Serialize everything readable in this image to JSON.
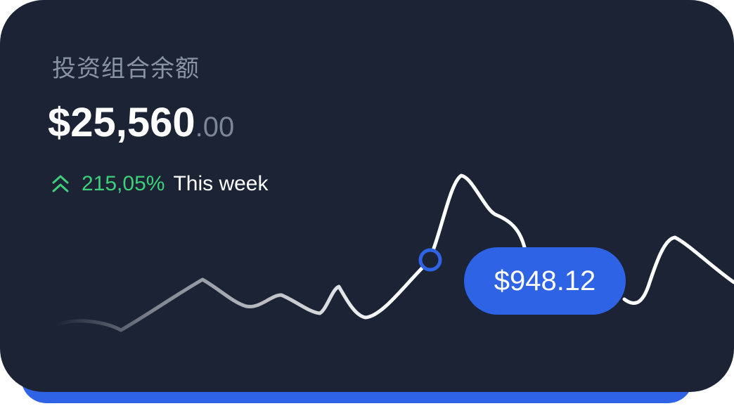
{
  "card": {
    "title": "投资组合余额",
    "balance_main": "$25,560",
    "balance_cents": ".00",
    "change_percent": "215,05%",
    "change_period": "This week",
    "tooltip_value": "$948.12"
  },
  "icons": {
    "trend": "double-chevron-up-icon"
  },
  "colors": {
    "card_background": "#1b2335",
    "accent": "#2f63e6",
    "positive": "#3ecf7a",
    "muted_text": "#8a93a3"
  }
}
